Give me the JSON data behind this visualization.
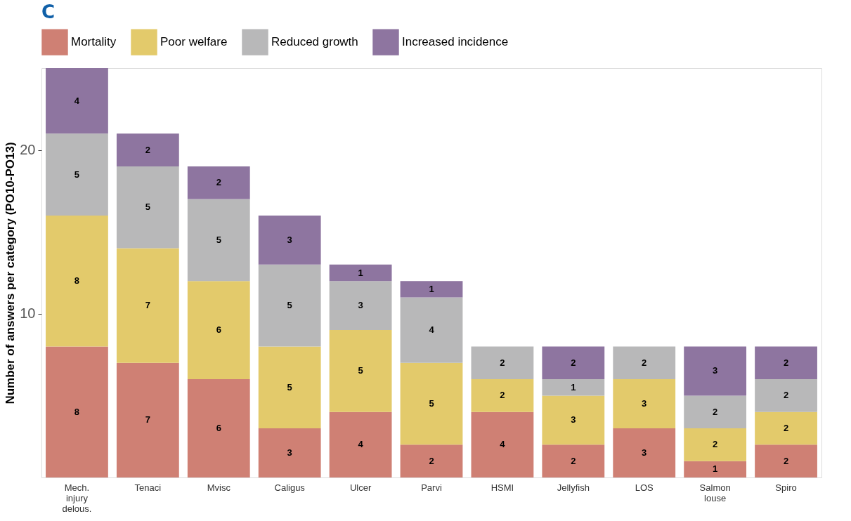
{
  "chart_data": {
    "type": "bar",
    "title": "C",
    "ylabel": "Number of answers per category (PO10-PO13)",
    "categories": [
      "Mech.\ninjury\ndelous.",
      "Tenaci",
      "Mvisc",
      "Caligus",
      "Ulcer",
      "Parvi",
      "HSMI",
      "Jellyfish",
      "LOS",
      "Salmon\nlouse",
      "Spiro"
    ],
    "stacked": true,
    "data_labels": true,
    "legend": "top",
    "grid": false,
    "ylim": [
      0,
      25
    ],
    "yticks": [
      10,
      20
    ],
    "series": [
      {
        "name": "Mortality",
        "color": "#cf8074",
        "values": [
          8,
          7,
          6,
          3,
          4,
          2,
          4,
          2,
          3,
          1,
          2
        ]
      },
      {
        "name": "Poor welfare",
        "color": "#e3ca6b",
        "values": [
          8,
          7,
          6,
          5,
          5,
          5,
          2,
          3,
          3,
          2,
          2
        ]
      },
      {
        "name": "Reduced growth",
        "color": "#b8b8b9",
        "values": [
          5,
          5,
          5,
          5,
          3,
          4,
          2,
          1,
          2,
          2,
          2
        ]
      },
      {
        "name": "Increased incidence",
        "color": "#8e75a0",
        "values": [
          4,
          2,
          2,
          3,
          1,
          1,
          null,
          2,
          null,
          3,
          2
        ]
      }
    ]
  }
}
